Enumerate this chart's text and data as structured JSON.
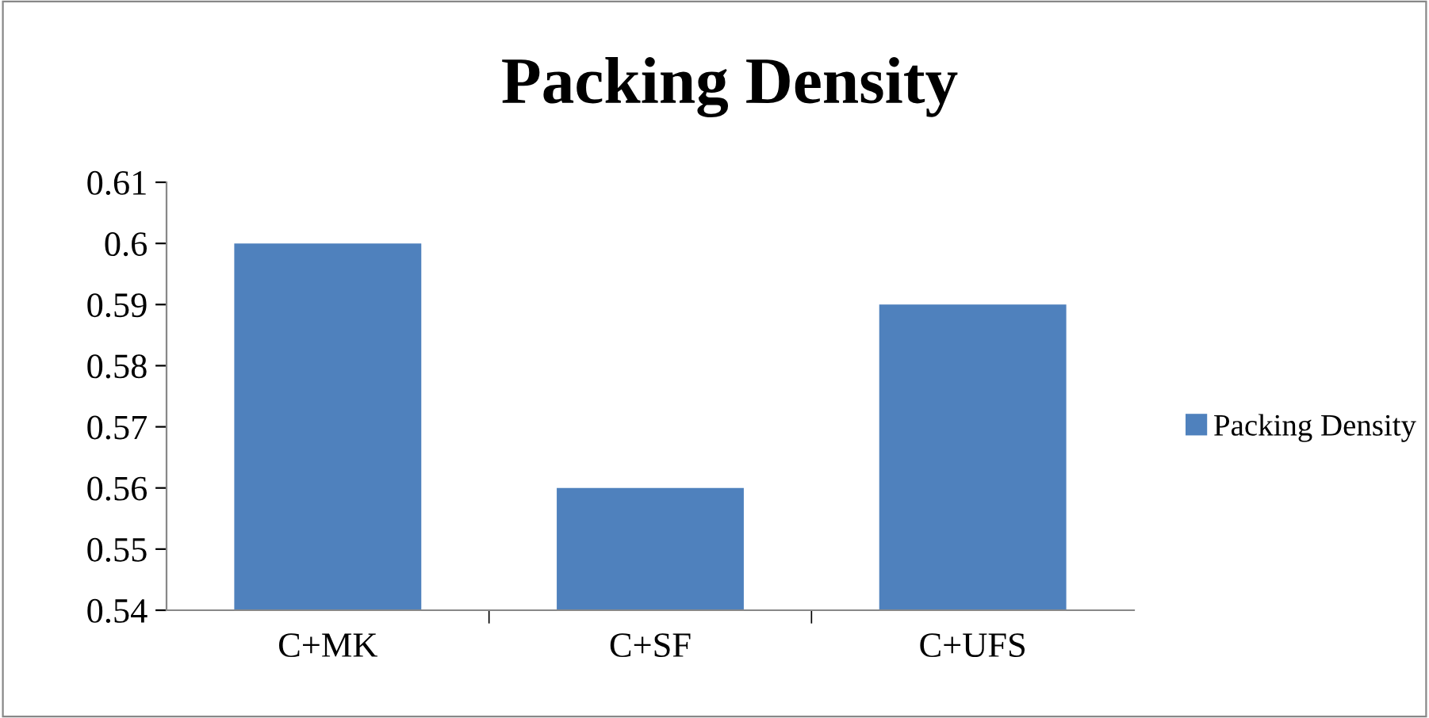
{
  "chart_data": {
    "type": "bar",
    "title": "Packing Density",
    "categories": [
      "C+MK",
      "C+SF",
      "C+UFS"
    ],
    "series": [
      {
        "name": "Packing Density",
        "color": "#4f81bd",
        "values": [
          0.6,
          0.56,
          0.59
        ]
      }
    ],
    "ylim": [
      0.54,
      0.61
    ],
    "yticks": [
      {
        "value": 0.54,
        "label": "0.54"
      },
      {
        "value": 0.55,
        "label": "0.55"
      },
      {
        "value": 0.56,
        "label": "0.56"
      },
      {
        "value": 0.57,
        "label": "0.57"
      },
      {
        "value": 0.58,
        "label": "0.58"
      },
      {
        "value": 0.59,
        "label": "0.59"
      },
      {
        "value": 0.6,
        "label": "0.6"
      },
      {
        "value": 0.61,
        "label": "0.61"
      }
    ],
    "grid": false,
    "legend": "right"
  }
}
